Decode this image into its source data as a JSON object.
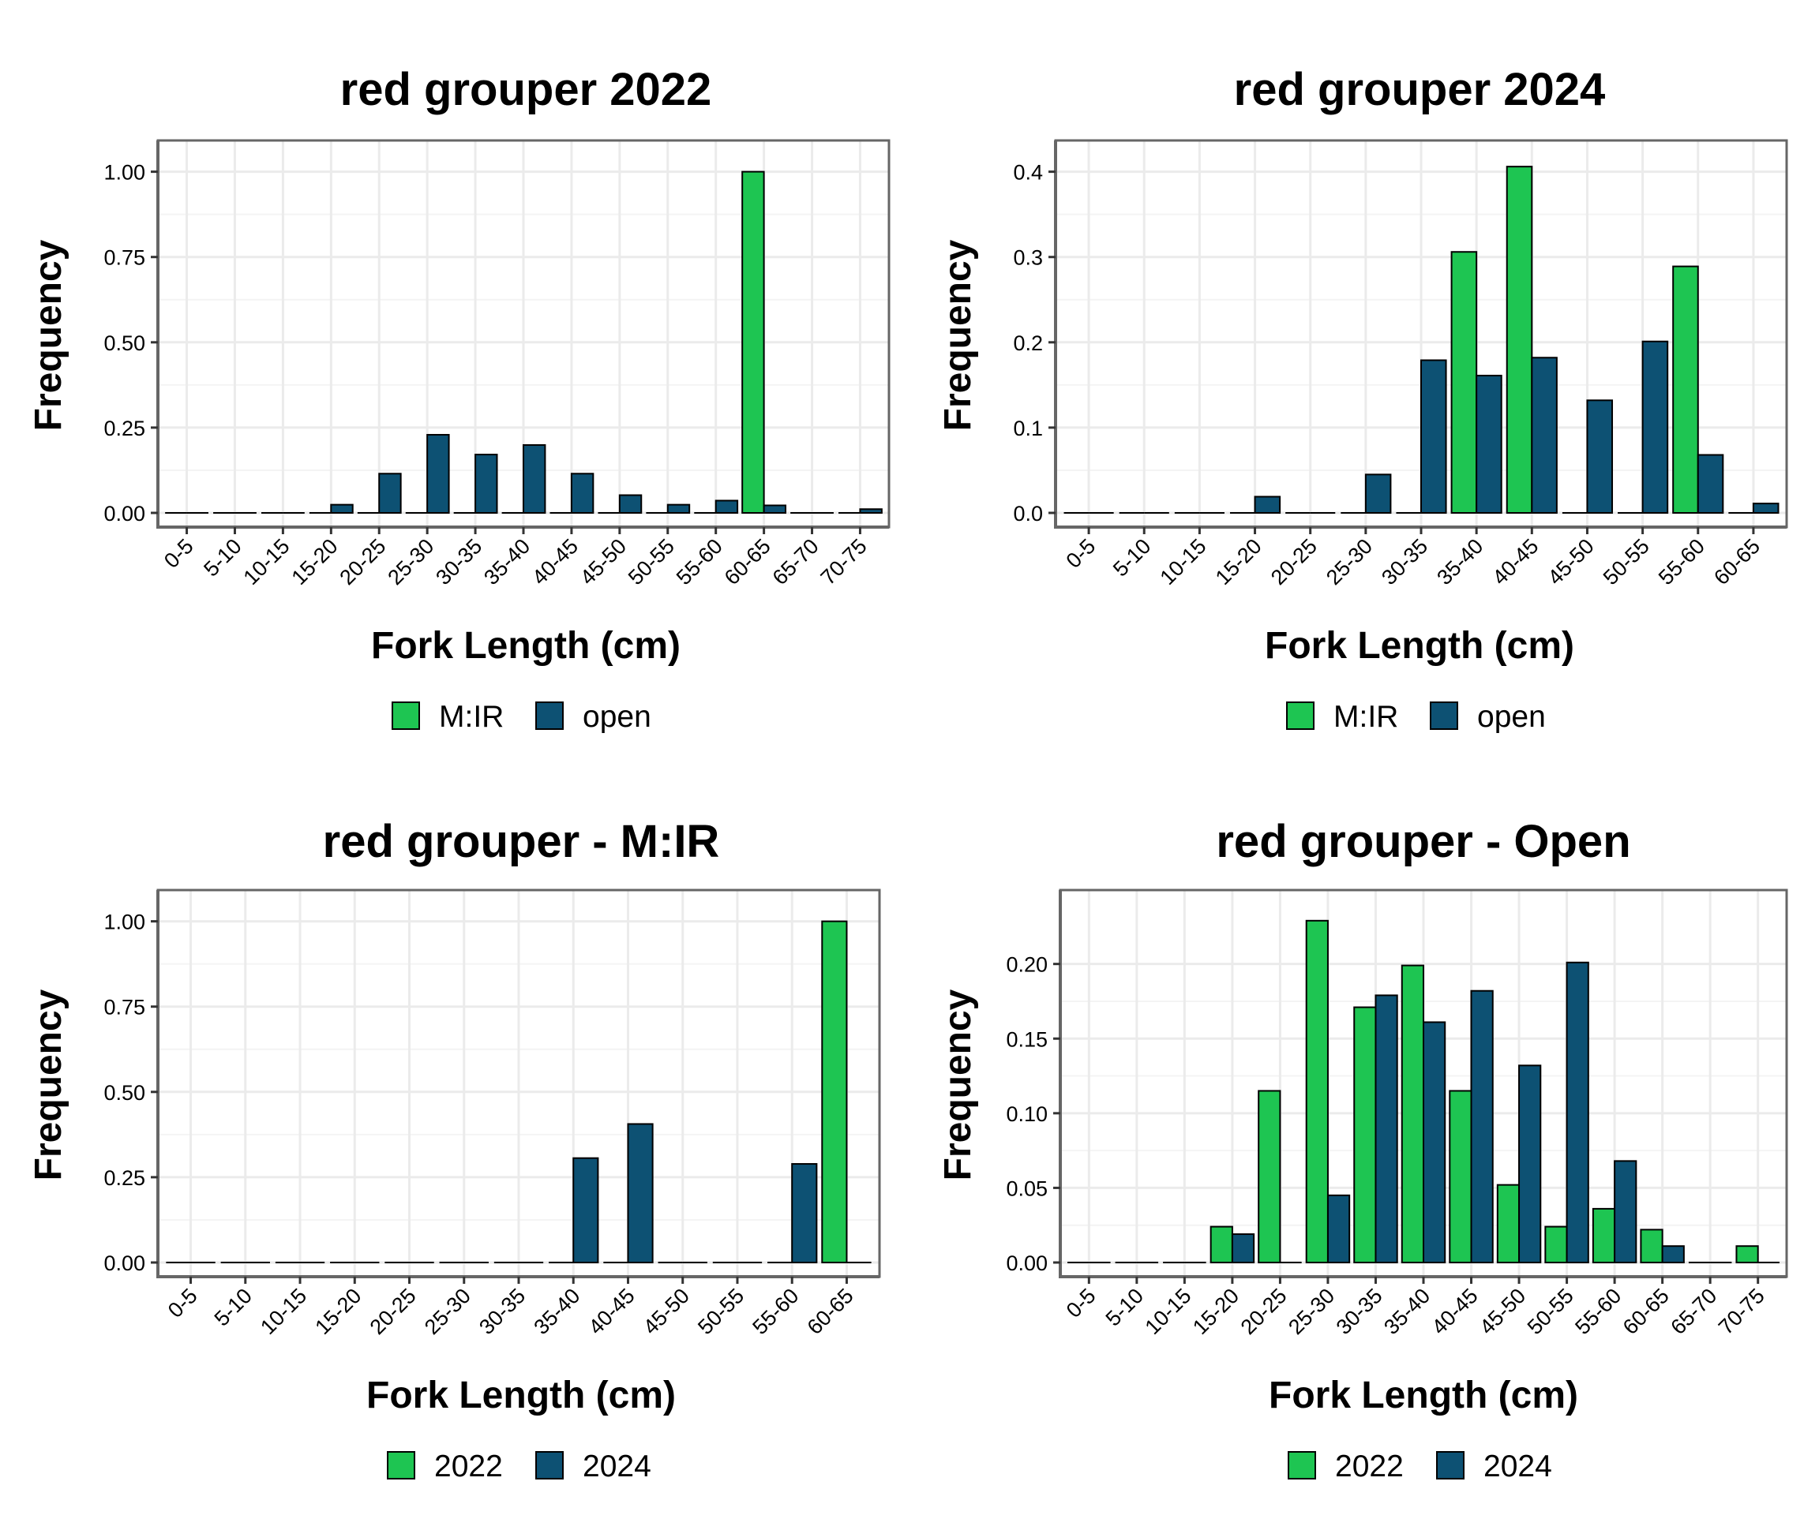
{
  "colors": {
    "green": "#1ec552",
    "blue": "#0d5173",
    "bar_outline": "#000000",
    "panel_border": "#666666",
    "grid_major": "#ebebeb",
    "grid_minor": "#f4f4f4"
  },
  "chart_data": [
    {
      "type": "bar",
      "title": "red grouper 2022",
      "xlabel": "Fork Length (cm)",
      "ylabel": "Frequency",
      "ylim": [
        0,
        1.05
      ],
      "yticks": [
        "0.00",
        "0.25",
        "0.50",
        "0.75",
        "1.00"
      ],
      "ytick_values": [
        0,
        0.25,
        0.5,
        0.75,
        1.0
      ],
      "grid": true,
      "legend_position": "bottom",
      "categories": [
        "0-5",
        "5-10",
        "10-15",
        "15-20",
        "20-25",
        "25-30",
        "30-35",
        "35-40",
        "40-45",
        "45-50",
        "50-55",
        "55-60",
        "60-65",
        "65-70",
        "70-75"
      ],
      "series": [
        {
          "name": "M:IR",
          "color": "#1ec552",
          "values": [
            0,
            0,
            0,
            0,
            0,
            0,
            0,
            0,
            0,
            0,
            0,
            0,
            1.0,
            0,
            0
          ]
        },
        {
          "name": "open",
          "color": "#0d5173",
          "values": [
            0,
            0,
            0,
            0.024,
            0.115,
            0.229,
            0.171,
            0.199,
            0.115,
            0.052,
            0.024,
            0.036,
            0.022,
            0,
            0.011
          ]
        }
      ]
    },
    {
      "type": "bar",
      "title": "red grouper 2024",
      "xlabel": "Fork Length (cm)",
      "ylabel": "Frequency",
      "ylim": [
        0,
        0.42
      ],
      "yticks": [
        "0.0",
        "0.1",
        "0.2",
        "0.3",
        "0.4"
      ],
      "ytick_values": [
        0,
        0.1,
        0.2,
        0.3,
        0.4
      ],
      "grid": true,
      "legend_position": "bottom",
      "categories": [
        "0-5",
        "5-10",
        "10-15",
        "15-20",
        "20-25",
        "25-30",
        "30-35",
        "35-40",
        "40-45",
        "45-50",
        "50-55",
        "55-60",
        "60-65"
      ],
      "series": [
        {
          "name": "M:IR",
          "color": "#1ec552",
          "values": [
            0,
            0,
            0,
            0,
            0,
            0,
            0,
            0.306,
            0.406,
            0,
            0,
            0.289,
            0
          ]
        },
        {
          "name": "open",
          "color": "#0d5173",
          "values": [
            0,
            0,
            0,
            0.019,
            0,
            0.045,
            0.179,
            0.161,
            0.182,
            0.132,
            0.201,
            0.068,
            0.011
          ]
        }
      ]
    },
    {
      "type": "bar",
      "title": "red grouper - M:IR",
      "xlabel": "Fork Length (cm)",
      "ylabel": "Frequency",
      "ylim": [
        0,
        1.05
      ],
      "yticks": [
        "0.00",
        "0.25",
        "0.50",
        "0.75",
        "1.00"
      ],
      "ytick_values": [
        0,
        0.25,
        0.5,
        0.75,
        1.0
      ],
      "grid": true,
      "legend_position": "bottom",
      "categories": [
        "0-5",
        "5-10",
        "10-15",
        "15-20",
        "20-25",
        "25-30",
        "30-35",
        "35-40",
        "40-45",
        "45-50",
        "50-55",
        "55-60",
        "60-65"
      ],
      "series": [
        {
          "name": "2022",
          "color": "#1ec552",
          "values": [
            0,
            0,
            0,
            0,
            0,
            0,
            0,
            0,
            0,
            0,
            0,
            0,
            1.0
          ]
        },
        {
          "name": "2024",
          "color": "#0d5173",
          "values": [
            0,
            0,
            0,
            0,
            0,
            0,
            0,
            0.306,
            0.406,
            0,
            0,
            0.289,
            0
          ]
        }
      ]
    },
    {
      "type": "bar",
      "title": "red grouper - Open",
      "xlabel": "Fork Length (cm)",
      "ylabel": "Frequency",
      "ylim": [
        0,
        0.24
      ],
      "yticks": [
        "0.00",
        "0.05",
        "0.10",
        "0.15",
        "0.20"
      ],
      "ytick_values": [
        0,
        0.05,
        0.1,
        0.15,
        0.2
      ],
      "grid": true,
      "legend_position": "bottom",
      "categories": [
        "0-5",
        "5-10",
        "10-15",
        "15-20",
        "20-25",
        "25-30",
        "30-35",
        "35-40",
        "40-45",
        "45-50",
        "50-55",
        "55-60",
        "60-65",
        "65-70",
        "70-75"
      ],
      "series": [
        {
          "name": "2022",
          "color": "#1ec552",
          "values": [
            0,
            0,
            0,
            0.024,
            0.115,
            0.229,
            0.171,
            0.199,
            0.115,
            0.052,
            0.024,
            0.036,
            0.022,
            0,
            0.011
          ]
        },
        {
          "name": "2024",
          "color": "#0d5173",
          "values": [
            0,
            0,
            0,
            0.019,
            0,
            0.045,
            0.179,
            0.161,
            0.182,
            0.132,
            0.201,
            0.068,
            0.011,
            0,
            0
          ]
        }
      ]
    }
  ]
}
